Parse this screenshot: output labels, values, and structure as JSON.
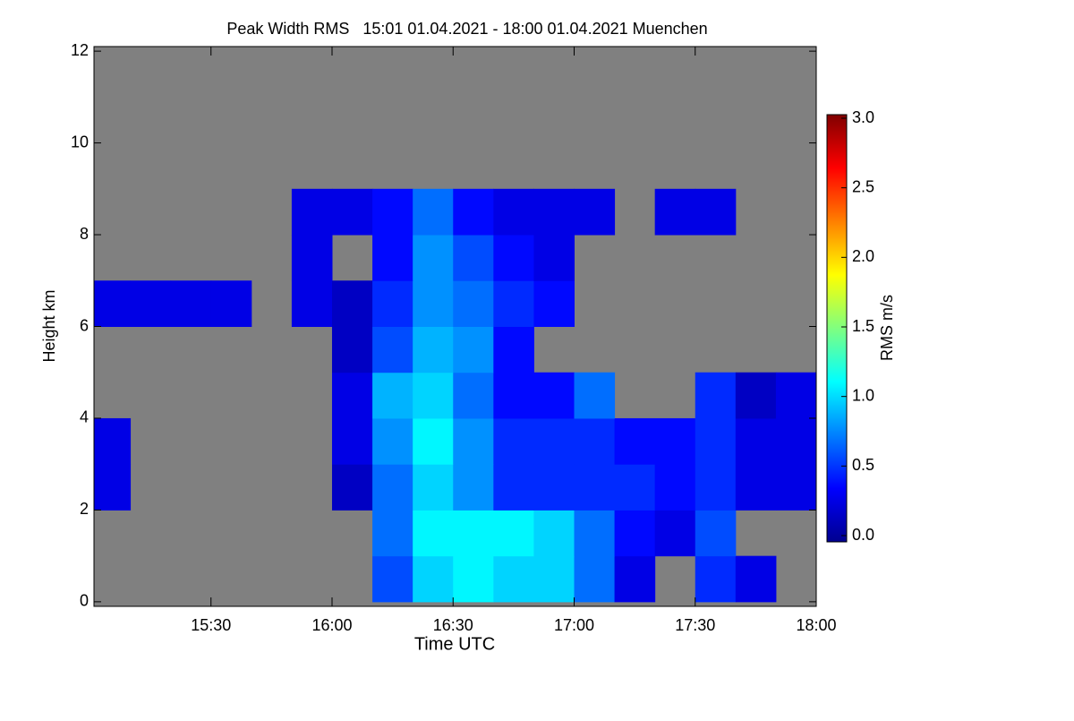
{
  "chart_data": {
    "type": "heatmap",
    "title": "Peak Width RMS   15:01 01.04.2021 - 18:00 01.04.2021 Muenchen",
    "x_label": "Time UTC",
    "y_label": "Height km",
    "colorbar_label": "RMS m/s",
    "background_color": "#808080",
    "colormap": "jet",
    "xlim": [
      901,
      1080
    ],
    "xticks": [
      {
        "value": 930,
        "label": "15:30"
      },
      {
        "value": 960,
        "label": "16:00"
      },
      {
        "value": 990,
        "label": "16:30"
      },
      {
        "value": 1020,
        "label": "17:00"
      },
      {
        "value": 1050,
        "label": "17:30"
      },
      {
        "value": 1080,
        "label": "18:00"
      }
    ],
    "ylim": [
      -0.1,
      12.1
    ],
    "yticks": [
      0,
      2,
      4,
      6,
      8,
      10,
      12
    ],
    "zlim": [
      0,
      3
    ],
    "zticks": [
      {
        "value": 0,
        "label": "0.0"
      },
      {
        "value": 0.5,
        "label": "0.5"
      },
      {
        "value": 1,
        "label": "1.0"
      },
      {
        "value": 1.5,
        "label": "1.5"
      },
      {
        "value": 2,
        "label": "2.0"
      },
      {
        "value": 2.5,
        "label": "2.5"
      },
      {
        "value": 3,
        "label": "3.0"
      }
    ],
    "x": [
      905,
      915,
      925,
      935,
      945,
      955,
      965,
      975,
      985,
      995,
      1005,
      1015,
      1025,
      1035,
      1045,
      1055,
      1065,
      1075
    ],
    "y": [
      0.5,
      1.5,
      2.5,
      3.5,
      4.5,
      5.5,
      6.5,
      7.5,
      8.5
    ],
    "z": [
      [
        null,
        null,
        null,
        null,
        null,
        null,
        null,
        0.6,
        1.0,
        1.1,
        1.0,
        1.0,
        0.7,
        0.3,
        null,
        0.5,
        0.3,
        null
      ],
      [
        null,
        null,
        null,
        null,
        null,
        null,
        null,
        0.7,
        1.1,
        1.1,
        1.1,
        1.0,
        0.7,
        0.4,
        0.3,
        0.6,
        null,
        null
      ],
      [
        0.3,
        null,
        null,
        null,
        null,
        null,
        0.2,
        0.7,
        1.0,
        0.8,
        0.5,
        0.5,
        0.5,
        0.5,
        0.4,
        0.5,
        0.3,
        0.3
      ],
      [
        0.3,
        null,
        null,
        null,
        null,
        null,
        0.3,
        0.8,
        1.1,
        0.8,
        0.5,
        0.5,
        0.5,
        0.4,
        0.4,
        0.5,
        0.3,
        0.3
      ],
      [
        null,
        null,
        null,
        null,
        null,
        null,
        0.3,
        0.9,
        1.0,
        0.7,
        0.4,
        0.4,
        0.7,
        null,
        null,
        0.5,
        0.2,
        0.3
      ],
      [
        null,
        null,
        null,
        null,
        null,
        null,
        0.2,
        0.6,
        0.9,
        0.8,
        0.4,
        null,
        null,
        null,
        null,
        null,
        null,
        null
      ],
      [
        0.3,
        0.3,
        0.3,
        0.3,
        null,
        0.3,
        0.2,
        0.5,
        0.8,
        0.7,
        0.5,
        0.4,
        null,
        null,
        null,
        null,
        null,
        null
      ],
      [
        null,
        null,
        null,
        null,
        null,
        0.3,
        null,
        0.4,
        0.8,
        0.6,
        0.4,
        0.3,
        null,
        null,
        null,
        null,
        null,
        null
      ],
      [
        null,
        null,
        null,
        null,
        null,
        0.3,
        0.3,
        0.4,
        0.7,
        0.4,
        0.3,
        0.3,
        0.3,
        null,
        0.3,
        0.3,
        null,
        null
      ]
    ]
  }
}
